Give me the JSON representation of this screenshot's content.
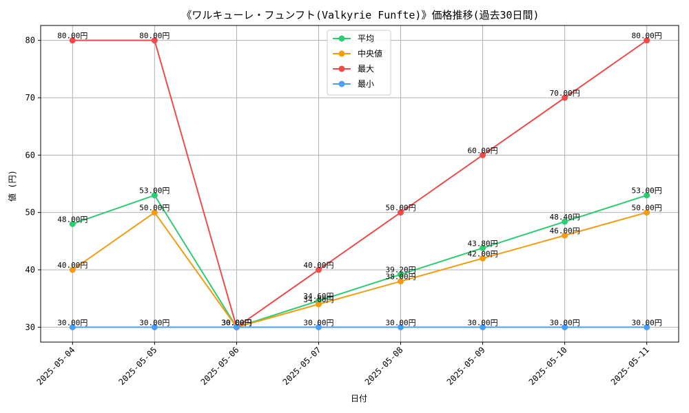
{
  "chart_data": {
    "type": "line",
    "title": "《ワルキューレ・フュンフト(Valkyrie Funfte)》価格推移(過去30日間)",
    "xlabel": "日付",
    "ylabel": "値 (円)",
    "categories": [
      "2025-05-04",
      "2025-05-05",
      "2025-05-06",
      "2025-05-07",
      "2025-05-08",
      "2025-05-09",
      "2025-05-10",
      "2025-05-11"
    ],
    "ylim": [
      27.4,
      82.6
    ],
    "yticks": [
      30,
      40,
      50,
      60,
      70,
      80
    ],
    "grid": true,
    "legend_position": "top-center",
    "value_suffix": "円",
    "series": [
      {
        "name": "平均",
        "color": "#2ecc71",
        "values": [
          48.0,
          53.0,
          30.0,
          34.6,
          39.2,
          43.8,
          48.4,
          53.0
        ]
      },
      {
        "name": "中央値",
        "color": "#f39c12",
        "values": [
          40.0,
          50.0,
          30.0,
          34.0,
          38.0,
          42.0,
          46.0,
          50.0
        ]
      },
      {
        "name": "最大",
        "color": "#ef4b4b",
        "values": [
          80.0,
          80.0,
          30.0,
          40.0,
          50.0,
          60.0,
          70.0,
          80.0
        ]
      },
      {
        "name": "最小",
        "color": "#4a9ff5",
        "values": [
          30.0,
          30.0,
          30.0,
          30.0,
          30.0,
          30.0,
          30.0,
          30.0
        ]
      }
    ]
  }
}
